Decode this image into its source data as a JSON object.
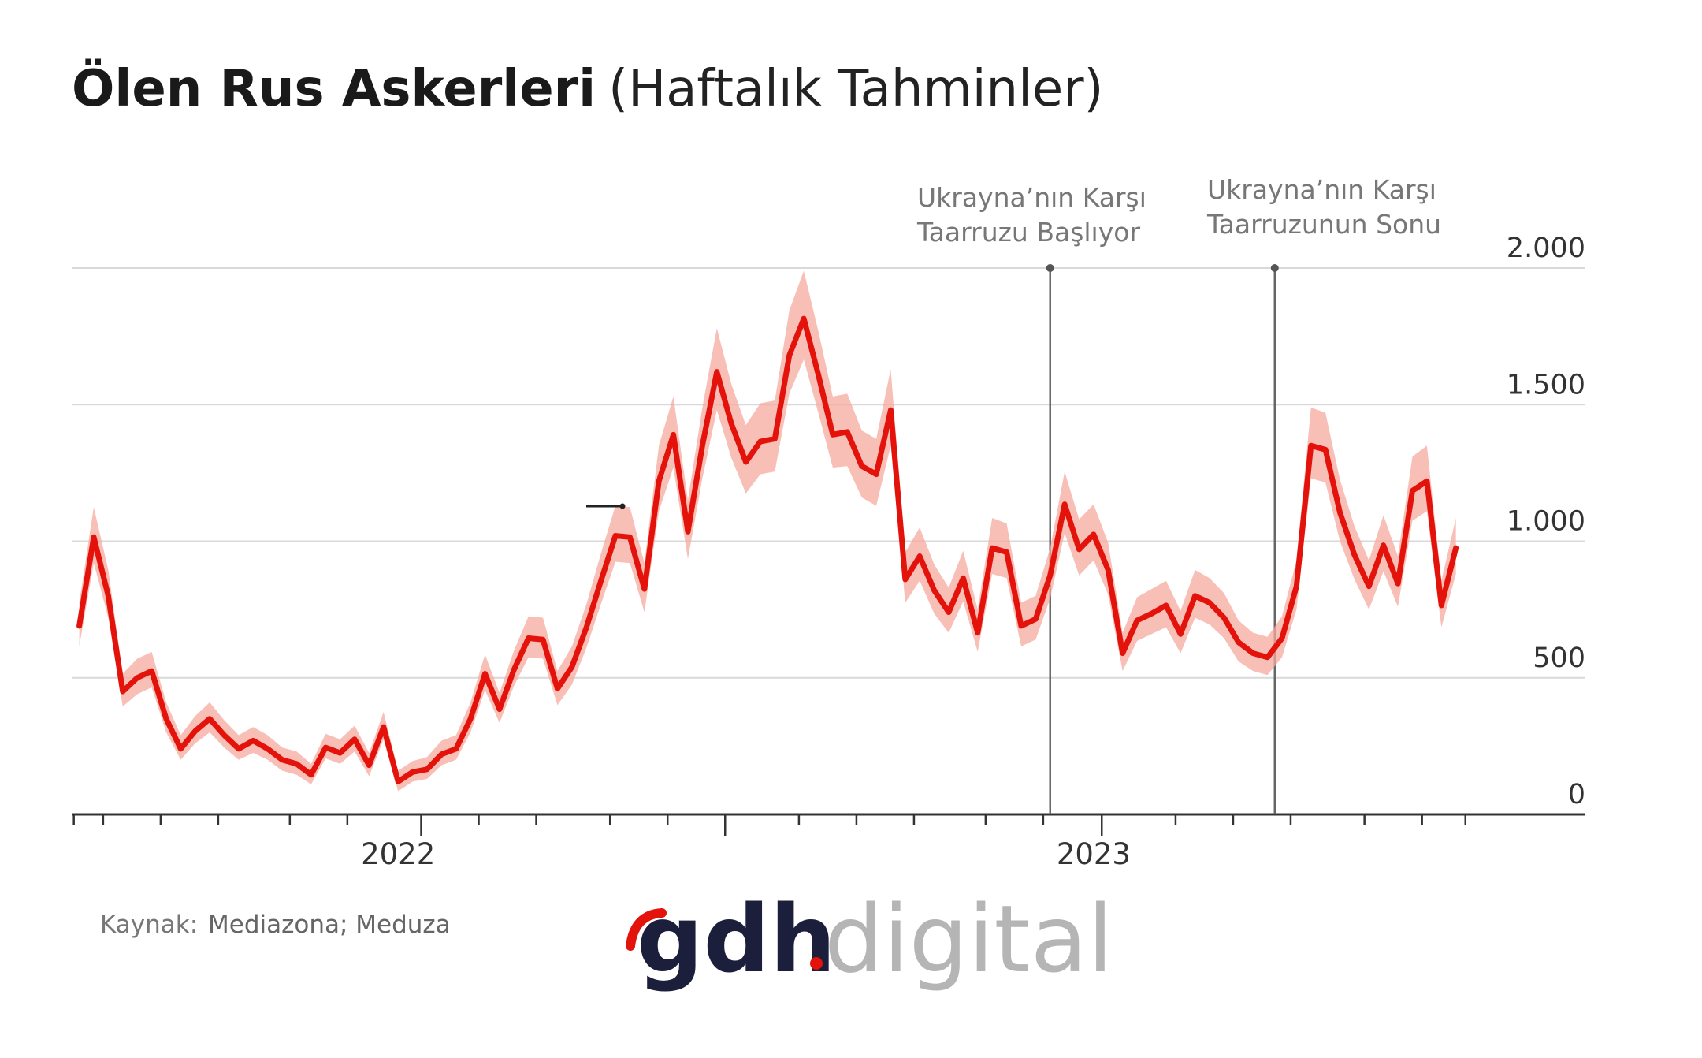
{
  "chart_data": {
    "type": "line",
    "title": "Ölen Rus Askerleri",
    "subtitle": "(Haftalık Tahminler)",
    "source_label": "Kaynak:",
    "source": "Mediazona; Meduza",
    "categories": [
      null,
      null,
      null,
      null,
      null,
      null,
      null,
      null,
      null,
      null,
      null,
      null,
      null,
      null,
      null,
      null,
      null,
      null,
      null,
      null,
      null,
      null,
      "2022",
      null,
      null,
      null,
      null,
      null,
      null,
      null,
      null,
      null,
      null,
      null,
      null,
      null,
      null,
      null,
      null,
      null,
      null,
      null,
      null,
      null,
      null,
      null,
      null,
      null,
      null,
      null,
      null,
      null,
      null,
      null,
      null,
      null,
      null,
      null,
      null,
      null,
      null,
      null,
      null,
      null,
      null,
      null,
      null,
      null,
      null,
      null,
      "2023",
      null,
      null,
      null,
      null,
      null,
      null,
      null,
      null,
      null,
      null,
      null,
      null,
      null,
      null,
      null,
      null,
      null,
      null,
      null,
      null,
      null,
      null,
      null,
      null,
      null
    ],
    "series": [
      {
        "color": "#e3120b",
        "band_color": "#f6a99f",
        "values": [
          690,
          1015,
          800,
          450,
          500,
          525,
          350,
          240,
          305,
          350,
          290,
          240,
          270,
          240,
          200,
          185,
          145,
          245,
          225,
          275,
          180,
          320,
          120,
          155,
          165,
          220,
          240,
          350,
          515,
          385,
          530,
          645,
          640,
          460,
          540,
          685,
          855,
          1020,
          1015,
          825,
          1220,
          1390,
          1035,
          1350,
          1620,
          1430,
          1290,
          1365,
          1375,
          1680,
          1815,
          1610,
          1390,
          1400,
          1275,
          1245,
          1480,
          860,
          945,
          820,
          740,
          865,
          665,
          975,
          960,
          690,
          715,
          875,
          1135,
          970,
          1025,
          895,
          590,
          710,
          735,
          765,
          660,
          800,
          775,
          720,
          630,
          590,
          575,
          645,
          835,
          1350,
          1335,
          1105,
          950,
          835,
          985,
          845,
          1185,
          1220,
          765,
          975
        ],
        "upper": [
          775,
          1125,
          895,
          515,
          570,
          595,
          410,
          290,
          360,
          410,
          345,
          290,
          320,
          290,
          245,
          230,
          185,
          295,
          275,
          325,
          225,
          375,
          160,
          195,
          210,
          270,
          290,
          410,
          585,
          445,
          600,
          725,
          720,
          525,
          615,
          770,
          955,
          1130,
          1125,
          920,
          1350,
          1530,
          1150,
          1490,
          1780,
          1575,
          1425,
          1505,
          1515,
          1845,
          1990,
          1770,
          1530,
          1540,
          1405,
          1375,
          1630,
          960,
          1050,
          915,
          830,
          965,
          750,
          1085,
          1065,
          775,
          800,
          975,
          1255,
          1080,
          1135,
          995,
          665,
          795,
          825,
          855,
          745,
          895,
          865,
          810,
          710,
          665,
          650,
          725,
          930,
          1490,
          1470,
          1225,
          1055,
          930,
          1095,
          945,
          1310,
          1350,
          855,
          1085
        ],
        "lower": [
          615,
          920,
          720,
          395,
          440,
          465,
          300,
          200,
          260,
          300,
          245,
          200,
          225,
          200,
          160,
          145,
          110,
          205,
          185,
          230,
          140,
          275,
          85,
          120,
          130,
          180,
          200,
          300,
          455,
          335,
          470,
          575,
          570,
          400,
          475,
          610,
          770,
          925,
          920,
          740,
          1110,
          1270,
          935,
          1230,
          1480,
          1305,
          1175,
          1245,
          1255,
          1540,
          1665,
          1470,
          1270,
          1275,
          1160,
          1130,
          1350,
          775,
          855,
          735,
          665,
          780,
          595,
          880,
          865,
          615,
          640,
          790,
          1030,
          875,
          930,
          805,
          525,
          635,
          660,
          685,
          590,
          720,
          695,
          645,
          560,
          525,
          510,
          575,
          750,
          1230,
          1215,
          1000,
          860,
          750,
          890,
          760,
          1075,
          1110,
          685,
          880
        ]
      }
    ],
    "ylim": [
      0,
      2000
    ],
    "yticks": [
      0,
      500,
      {
        "value": 1000,
        "label": "1.000"
      },
      {
        "value": 1500,
        "label": "1.500"
      },
      {
        "value": 2000,
        "label": "2.000"
      }
    ],
    "grid": true,
    "annotations": [
      {
        "x": 67,
        "lines": [
          "Ukrayna’nın Karşı",
          "Taarruzu Başlıyor"
        ]
      },
      {
        "x": 82.5,
        "lines": [
          "Ukrayna’nın Karşı",
          "Taarruzunun Sonu"
        ]
      }
    ]
  },
  "logo": {
    "brand": "gdh",
    "suffix": "digital"
  }
}
